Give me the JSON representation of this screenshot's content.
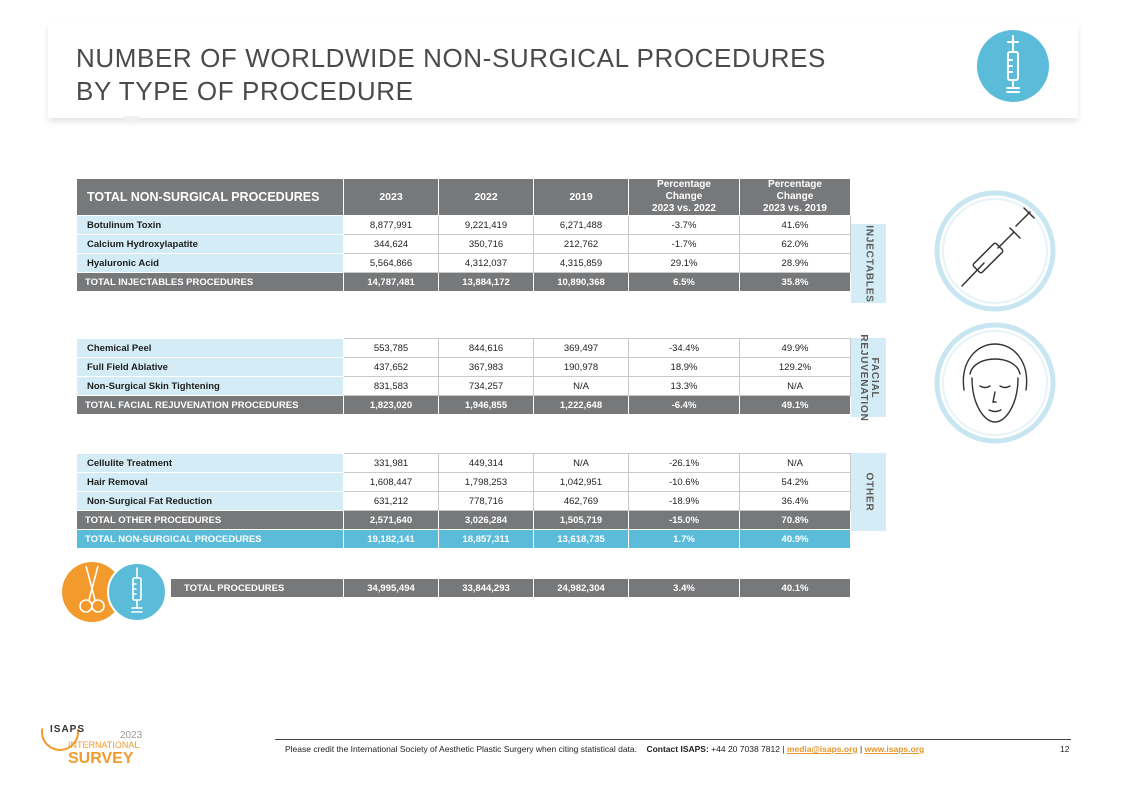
{
  "title_line1": "NUMBER OF WORLDWIDE NON-SURGICAL PROCEDURES",
  "title_line2": "BY TYPE OF PROCEDURE",
  "table_header": {
    "first": "TOTAL NON-SURGICAL PROCEDURES",
    "y2023": "2023",
    "y2022": "2022",
    "y2019": "2019",
    "pc1_l1": "Percentage",
    "pc1_l2": "Change",
    "pc1_l3": "2023 vs. 2022",
    "pc2_l1": "Percentage",
    "pc2_l2": "Change",
    "pc2_l3": "2023 vs. 2019"
  },
  "injectables": {
    "side_label": "INJECTABLES",
    "rows": [
      {
        "name": "Botulinum Toxin",
        "v2023": "8,877,991",
        "v2022": "9,221,419",
        "v2019": "6,271,488",
        "pc1": "-3.7%",
        "pc2": "41.6%"
      },
      {
        "name": "Calcium Hydroxylapatite",
        "v2023": "344,624",
        "v2022": "350,716",
        "v2019": "212,762",
        "pc1": "-1.7%",
        "pc2": "62.0%"
      },
      {
        "name": "Hyaluronic Acid",
        "v2023": "5,564,866",
        "v2022": "4,312,037",
        "v2019": "4,315,859",
        "pc1": "29.1%",
        "pc2": "28.9%"
      }
    ],
    "total": {
      "name": "TOTAL INJECTABLES PROCEDURES",
      "v2023": "14,787,481",
      "v2022": "13,884,172",
      "v2019": "10,890,368",
      "pc1": "6.5%",
      "pc2": "35.8%"
    }
  },
  "facial": {
    "side_label_1": "FACIAL",
    "side_label_2": "REJUVENATION",
    "rows": [
      {
        "name": "Chemical Peel",
        "v2023": "553,785",
        "v2022": "844,616",
        "v2019": "369,497",
        "pc1": "-34.4%",
        "pc2": "49.9%"
      },
      {
        "name": "Full Field Ablative",
        "v2023": "437,652",
        "v2022": "367,983",
        "v2019": "190,978",
        "pc1": "18.9%",
        "pc2": "129.2%"
      },
      {
        "name": "Non-Surgical Skin Tightening",
        "v2023": "831,583",
        "v2022": "734,257",
        "v2019": "N/A",
        "pc1": "13.3%",
        "pc2": "N/A"
      }
    ],
    "total": {
      "name": "TOTAL FACIAL REJUVENATION PROCEDURES",
      "v2023": "1,823,020",
      "v2022": "1,946,855",
      "v2019": "1,222,648",
      "pc1": "-6.4%",
      "pc2": "49.1%"
    }
  },
  "other": {
    "side_label": "OTHER",
    "rows": [
      {
        "name": "Cellulite Treatment",
        "v2023": "331,981",
        "v2022": "449,314",
        "v2019": "N/A",
        "pc1": "-26.1%",
        "pc2": "N/A"
      },
      {
        "name": "Hair Removal",
        "v2023": "1,608,447",
        "v2022": "1,798,253",
        "v2019": "1,042,951",
        "pc1": "-10.6%",
        "pc2": "54.2%"
      },
      {
        "name": "Non-Surgical Fat Reduction",
        "v2023": "631,212",
        "v2022": "778,716",
        "v2019": "462,769",
        "pc1": "-18.9%",
        "pc2": "36.4%"
      }
    ],
    "total": {
      "name": "TOTAL OTHER PROCEDURES",
      "v2023": "2,571,640",
      "v2022": "3,026,284",
      "v2019": "1,505,719",
      "pc1": "-15.0%",
      "pc2": "70.8%"
    },
    "non_surgical_total": {
      "name": "TOTAL NON-SURGICAL PROCEDURES",
      "v2023": "19,182,141",
      "v2022": "18,857,311",
      "v2019": "13,618,735",
      "pc1": "1.7%",
      "pc2": "40.9%"
    }
  },
  "total_procedures": {
    "name": "TOTAL PROCEDURES",
    "v2023": "34,995,494",
    "v2022": "33,844,293",
    "v2019": "24,982,304",
    "pc1": "3.4%",
    "pc2": "40.1%"
  },
  "logo": {
    "brand": "ISAPS",
    "year": "2023",
    "line1": "INTERNATIONAL",
    "line2": "SURVEY"
  },
  "footer": {
    "credit": "Please credit the International Society of Aesthetic Plastic Surgery when citing statistical data.",
    "contact_label": "Contact ISAPS:",
    "phone": "+44 20 7038 7812 |",
    "email": "media@isaps.org",
    "divider": "|",
    "website": "www.isaps.org",
    "page": "12"
  },
  "colors": {
    "accent_blue": "#5bbcd9",
    "light_blue": "#d4ecf5",
    "grey": "#77787a",
    "orange": "#f39a2c"
  },
  "icons": [
    "syringe-icon",
    "face-icon",
    "scissors-icon"
  ]
}
